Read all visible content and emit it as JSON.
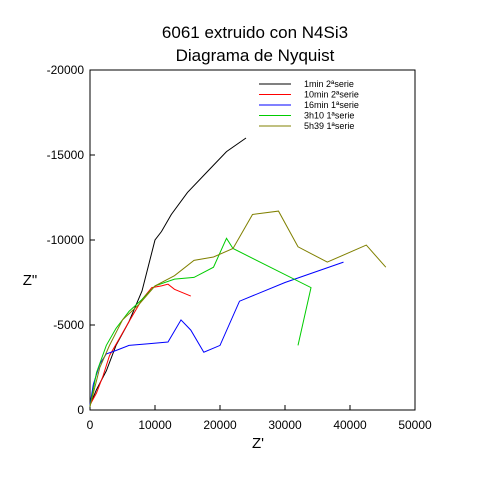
{
  "chart_data": {
    "type": "line",
    "title": "6061 extruido con N4Si3",
    "subtitle": "Diagrama de Nyquist",
    "xlabel": "Z'",
    "ylabel": "Z\"",
    "xlim": [
      0,
      50000
    ],
    "ylim": [
      0,
      -20000
    ],
    "x_ticks": [
      0,
      10000,
      20000,
      30000,
      40000,
      50000
    ],
    "y_ticks": [
      0,
      -5000,
      -10000,
      -15000,
      -20000
    ],
    "grid": false,
    "legend_position": "top-right",
    "series": [
      {
        "name": "1min 2ªserie",
        "color": "#000000",
        "points": [
          [
            0,
            -300
          ],
          [
            1000,
            -1200
          ],
          [
            2500,
            -2300
          ],
          [
            4000,
            -3800
          ],
          [
            6000,
            -5200
          ],
          [
            8000,
            -7000
          ],
          [
            9000,
            -8500
          ],
          [
            10000,
            -10000
          ],
          [
            11000,
            -10500
          ],
          [
            12500,
            -11500
          ],
          [
            15000,
            -12800
          ],
          [
            18000,
            -14000
          ],
          [
            21000,
            -15200
          ],
          [
            24000,
            -16000
          ]
        ]
      },
      {
        "name": "10min 2ªserie",
        "color": "#ff0000",
        "points": [
          [
            0,
            -300
          ],
          [
            1000,
            -1000
          ],
          [
            2000,
            -2000
          ],
          [
            3000,
            -3200
          ],
          [
            4500,
            -4200
          ],
          [
            6000,
            -5200
          ],
          [
            8000,
            -6500
          ],
          [
            9500,
            -7200
          ],
          [
            11000,
            -7300
          ],
          [
            12000,
            -7400
          ],
          [
            13000,
            -7100
          ],
          [
            15500,
            -6700
          ]
        ]
      },
      {
        "name": "16min 1ªserie",
        "color": "#0000ff",
        "points": [
          [
            0,
            -300
          ],
          [
            500,
            -1500
          ],
          [
            1500,
            -2700
          ],
          [
            2500,
            -3300
          ],
          [
            4000,
            -3500
          ],
          [
            6000,
            -3800
          ],
          [
            9000,
            -3900
          ],
          [
            12000,
            -4000
          ],
          [
            14000,
            -5300
          ],
          [
            15500,
            -4700
          ],
          [
            17500,
            -3400
          ],
          [
            20000,
            -3800
          ],
          [
            23000,
            -6400
          ],
          [
            30000,
            -7500
          ],
          [
            39000,
            -8700
          ]
        ]
      },
      {
        "name": "3h10 1ªserie",
        "color": "#00cc00",
        "points": [
          [
            0,
            -200
          ],
          [
            1000,
            -2200
          ],
          [
            2500,
            -3800
          ],
          [
            4000,
            -4800
          ],
          [
            6000,
            -5800
          ],
          [
            8000,
            -6500
          ],
          [
            10000,
            -7300
          ],
          [
            13000,
            -7700
          ],
          [
            16000,
            -7800
          ],
          [
            19000,
            -8400
          ],
          [
            21000,
            -10100
          ],
          [
            22000,
            -9500
          ],
          [
            34000,
            -7200
          ],
          [
            32000,
            -3800
          ]
        ]
      },
      {
        "name": "5h39 1ªserie",
        "color": "#808000",
        "points": [
          [
            0,
            -200
          ],
          [
            1500,
            -2500
          ],
          [
            3000,
            -3800
          ],
          [
            5000,
            -5300
          ],
          [
            7500,
            -6200
          ],
          [
            10000,
            -7300
          ],
          [
            13000,
            -7900
          ],
          [
            16000,
            -8800
          ],
          [
            19000,
            -9000
          ],
          [
            22000,
            -9500
          ],
          [
            25000,
            -11500
          ],
          [
            29000,
            -11700
          ],
          [
            32000,
            -9600
          ],
          [
            36500,
            -8700
          ],
          [
            42500,
            -9700
          ],
          [
            45500,
            -8400
          ]
        ]
      }
    ]
  }
}
